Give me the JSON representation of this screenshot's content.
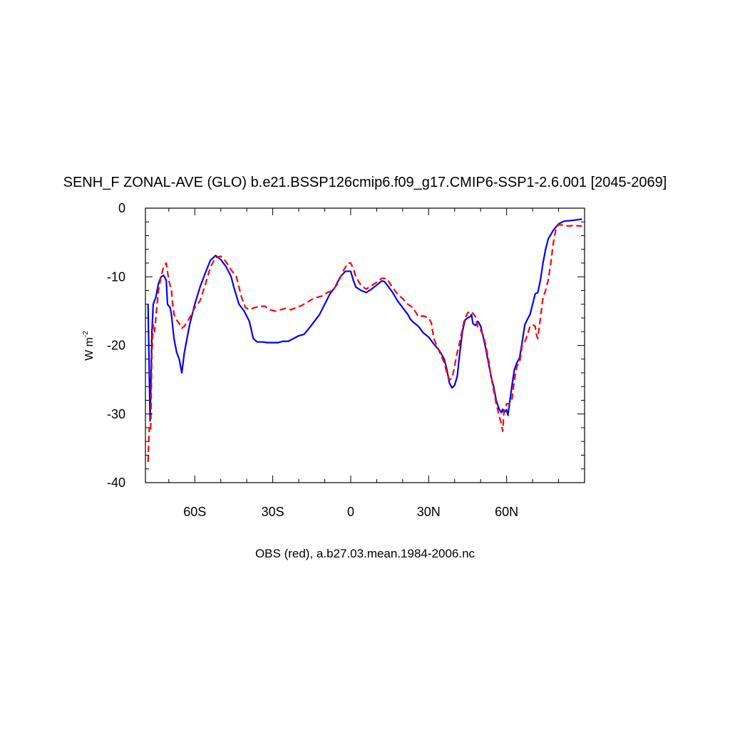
{
  "chart_data": {
    "type": "line",
    "title": "SENH_F ZONAL-AVE (GLO) b.e21.BSSP126cmip6.f09_g17.CMIP6-SSP1-2.6.001 [2045-2069]",
    "subtitle": "OBS (red), a.b27.03.mean.1984-2006.nc",
    "xlabel": "",
    "ylabel": "W m",
    "ylabel_superscript": "-2",
    "xlim": [
      -79,
      90
    ],
    "ylim": [
      -40,
      0
    ],
    "grid": false,
    "x_ticks": [
      {
        "value": -60,
        "label": "60S"
      },
      {
        "value": -30,
        "label": "30S"
      },
      {
        "value": 0,
        "label": "0"
      },
      {
        "value": 30,
        "label": "30N"
      },
      {
        "value": 60,
        "label": "60N"
      }
    ],
    "y_ticks": [
      {
        "value": 0,
        "label": "0"
      },
      {
        "value": -10,
        "label": "-10"
      },
      {
        "value": -20,
        "label": "-20"
      },
      {
        "value": -30,
        "label": "-30"
      },
      {
        "value": -40,
        "label": "-40"
      }
    ],
    "series": [
      {
        "color": "#0000ff",
        "style": "solid",
        "points": [
          [
            -78,
            -14
          ],
          [
            -77.2,
            -31
          ],
          [
            -76.5,
            -18
          ],
          [
            -76,
            -14
          ],
          [
            -75,
            -13
          ],
          [
            -74,
            -11
          ],
          [
            -73,
            -10
          ],
          [
            -72,
            -9.8
          ],
          [
            -71,
            -10.5
          ],
          [
            -70.5,
            -14
          ],
          [
            -69.5,
            -14.5
          ],
          [
            -69,
            -15.5
          ],
          [
            -68,
            -19
          ],
          [
            -67,
            -21
          ],
          [
            -66,
            -22
          ],
          [
            -65,
            -24
          ],
          [
            -64,
            -21
          ],
          [
            -63,
            -19
          ],
          [
            -62,
            -17
          ],
          [
            -60,
            -14
          ],
          [
            -58,
            -11.5
          ],
          [
            -56,
            -9.5
          ],
          [
            -54,
            -7.6
          ],
          [
            -52,
            -6.9
          ],
          [
            -50,
            -7.5
          ],
          [
            -48,
            -8.5
          ],
          [
            -46,
            -10
          ],
          [
            -45,
            -11.5
          ],
          [
            -43,
            -14
          ],
          [
            -41,
            -15
          ],
          [
            -39,
            -16.5
          ],
          [
            -37.5,
            -19
          ],
          [
            -36,
            -19.5
          ],
          [
            -34,
            -19.5
          ],
          [
            -32,
            -19.6
          ],
          [
            -30,
            -19.6
          ],
          [
            -28,
            -19.6
          ],
          [
            -26,
            -19.4
          ],
          [
            -24,
            -19.4
          ],
          [
            -22,
            -19
          ],
          [
            -20,
            -18.6
          ],
          [
            -18,
            -18.4
          ],
          [
            -16,
            -17.5
          ],
          [
            -14,
            -16.5
          ],
          [
            -12,
            -15.5
          ],
          [
            -10,
            -14
          ],
          [
            -8,
            -12.5
          ],
          [
            -6,
            -11.5
          ],
          [
            -4,
            -10
          ],
          [
            -2,
            -9.2
          ],
          [
            0,
            -9.2
          ],
          [
            1,
            -10.5
          ],
          [
            2,
            -11.5
          ],
          [
            4,
            -12
          ],
          [
            6,
            -12.3
          ],
          [
            8,
            -11.8
          ],
          [
            10,
            -11.2
          ],
          [
            12,
            -10.6
          ],
          [
            13,
            -10.7
          ],
          [
            14,
            -11.2
          ],
          [
            16,
            -12.2
          ],
          [
            18,
            -13.5
          ],
          [
            20,
            -14.5
          ],
          [
            22,
            -15.5
          ],
          [
            23,
            -16.2
          ],
          [
            24,
            -16.6
          ],
          [
            26,
            -17.2
          ],
          [
            28,
            -18.2
          ],
          [
            30,
            -18.8
          ],
          [
            32,
            -19.8
          ],
          [
            34,
            -20.7
          ],
          [
            36,
            -22
          ],
          [
            37,
            -23.5
          ],
          [
            38,
            -25.5
          ],
          [
            39,
            -26.2
          ],
          [
            40,
            -25.8
          ],
          [
            41,
            -24.5
          ],
          [
            42,
            -21
          ],
          [
            43,
            -18
          ],
          [
            44,
            -16.3
          ],
          [
            45,
            -16
          ],
          [
            46,
            -15.8
          ],
          [
            46.5,
            -15.5
          ],
          [
            47,
            -16.8
          ],
          [
            48,
            -17.1
          ],
          [
            49,
            -16.5
          ],
          [
            50,
            -17.2
          ],
          [
            51,
            -18.8
          ],
          [
            52,
            -20.5
          ],
          [
            53,
            -22.5
          ],
          [
            54,
            -24.5
          ],
          [
            55,
            -26
          ],
          [
            56,
            -28
          ],
          [
            57,
            -29.2
          ],
          [
            58,
            -29.8
          ],
          [
            58.5,
            -29.3
          ],
          [
            59,
            -29.8
          ],
          [
            60,
            -29.4
          ],
          [
            60.5,
            -30.2
          ],
          [
            61,
            -28.8
          ],
          [
            62,
            -26
          ],
          [
            63,
            -23.5
          ],
          [
            64,
            -22.5
          ],
          [
            65,
            -21.8
          ],
          [
            66,
            -19.5
          ],
          [
            67,
            -17
          ],
          [
            68,
            -16.2
          ],
          [
            69,
            -15.5
          ],
          [
            70,
            -14
          ],
          [
            71,
            -12.5
          ],
          [
            72,
            -12.3
          ],
          [
            73,
            -10.5
          ],
          [
            74,
            -8
          ],
          [
            75,
            -6
          ],
          [
            76,
            -4.5
          ],
          [
            78,
            -3.2
          ],
          [
            80,
            -2.3
          ],
          [
            82,
            -1.9
          ],
          [
            85,
            -1.8
          ],
          [
            89,
            -1.6
          ]
        ]
      },
      {
        "color": "#ff0000",
        "style": "dashed",
        "points": [
          [
            -78,
            -37
          ],
          [
            -77.5,
            -32
          ],
          [
            -77,
            -32.5
          ],
          [
            -76.5,
            -21
          ],
          [
            -76,
            -17
          ],
          [
            -75.5,
            -18
          ],
          [
            -75,
            -16
          ],
          [
            -74,
            -12
          ],
          [
            -73,
            -10
          ],
          [
            -72,
            -8.5
          ],
          [
            -71,
            -8
          ],
          [
            -70,
            -10.5
          ],
          [
            -69,
            -12
          ],
          [
            -68.5,
            -14
          ],
          [
            -68,
            -15.5
          ],
          [
            -67,
            -16.3
          ],
          [
            -66,
            -16.8
          ],
          [
            -65,
            -17.5
          ],
          [
            -64,
            -17.2
          ],
          [
            -62,
            -16
          ],
          [
            -60,
            -14.5
          ],
          [
            -58,
            -13.5
          ],
          [
            -56,
            -11.2
          ],
          [
            -54,
            -8.6
          ],
          [
            -52,
            -7.2
          ],
          [
            -50,
            -7
          ],
          [
            -48,
            -7.8
          ],
          [
            -46,
            -9
          ],
          [
            -44,
            -10
          ],
          [
            -43,
            -11.5
          ],
          [
            -42,
            -13
          ],
          [
            -40.5,
            -14.5
          ],
          [
            -39,
            -14.8
          ],
          [
            -37,
            -14.5
          ],
          [
            -35,
            -14.3
          ],
          [
            -33,
            -14.3
          ],
          [
            -31,
            -14.8
          ],
          [
            -29,
            -15
          ],
          [
            -27,
            -14.8
          ],
          [
            -25,
            -14.6
          ],
          [
            -23,
            -14.8
          ],
          [
            -21,
            -14.5
          ],
          [
            -19,
            -14.2
          ],
          [
            -17,
            -13.8
          ],
          [
            -15,
            -13.3
          ],
          [
            -13,
            -13
          ],
          [
            -11,
            -12.8
          ],
          [
            -9,
            -12.3
          ],
          [
            -7,
            -12
          ],
          [
            -5,
            -11
          ],
          [
            -3,
            -9.2
          ],
          [
            -1,
            -8
          ],
          [
            0,
            -8
          ],
          [
            1,
            -8.8
          ],
          [
            2,
            -10
          ],
          [
            4,
            -11.3
          ],
          [
            6,
            -11.8
          ],
          [
            8,
            -11.3
          ],
          [
            10,
            -10.8
          ],
          [
            12,
            -10.2
          ],
          [
            14,
            -10.3
          ],
          [
            16,
            -11.5
          ],
          [
            18,
            -12.5
          ],
          [
            20,
            -13.2
          ],
          [
            22,
            -14
          ],
          [
            24,
            -14.5
          ],
          [
            26,
            -15.8
          ],
          [
            28,
            -15.7
          ],
          [
            30,
            -16
          ],
          [
            31,
            -16.7
          ],
          [
            32,
            -19
          ],
          [
            34,
            -20.8
          ],
          [
            36,
            -22.5
          ],
          [
            37,
            -24
          ],
          [
            38,
            -25
          ],
          [
            39,
            -24.8
          ],
          [
            40,
            -23
          ],
          [
            41,
            -21
          ],
          [
            42,
            -19.5
          ],
          [
            43,
            -17.5
          ],
          [
            44,
            -16
          ],
          [
            45,
            -15.3
          ],
          [
            46,
            -15
          ],
          [
            47,
            -15.3
          ],
          [
            48,
            -15.8
          ],
          [
            49,
            -17.5
          ],
          [
            50,
            -17.8
          ],
          [
            51,
            -18.5
          ],
          [
            52,
            -20
          ],
          [
            53,
            -22
          ],
          [
            54,
            -24.5
          ],
          [
            55,
            -26.5
          ],
          [
            56,
            -28.5
          ],
          [
            57,
            -30
          ],
          [
            58,
            -31.5
          ],
          [
            58.5,
            -32.5
          ],
          [
            59,
            -29.5
          ],
          [
            59.5,
            -29.2
          ],
          [
            60,
            -28.5
          ],
          [
            61,
            -28.5
          ],
          [
            62,
            -28
          ],
          [
            63,
            -25
          ],
          [
            64,
            -23
          ],
          [
            65,
            -22.5
          ],
          [
            66,
            -20
          ],
          [
            67,
            -19.5
          ],
          [
            68,
            -18.5
          ],
          [
            69,
            -17.2
          ],
          [
            70,
            -17
          ],
          [
            71,
            -17.2
          ],
          [
            71.5,
            -18.5
          ],
          [
            72,
            -19
          ],
          [
            73,
            -16
          ],
          [
            74,
            -13
          ],
          [
            75,
            -12
          ],
          [
            76,
            -10.5
          ],
          [
            77,
            -8
          ],
          [
            78,
            -5
          ],
          [
            79,
            -3
          ],
          [
            80,
            -2.4
          ],
          [
            82,
            -2.5
          ],
          [
            84,
            -2.6
          ],
          [
            86,
            -2.5
          ],
          [
            88,
            -2.6
          ],
          [
            89,
            -2.6
          ]
        ]
      }
    ]
  }
}
